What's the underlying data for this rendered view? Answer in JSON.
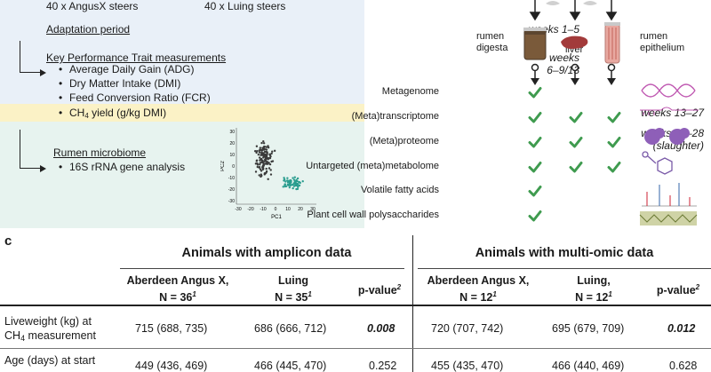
{
  "design": {
    "groups": [
      "40 x AngusX steers",
      "40 x Luing steers"
    ],
    "adaptation": {
      "label": "Adaptation period",
      "weeks": "weeks 1–5"
    },
    "kpt": {
      "label": "Key Performance Trait measurements",
      "weeks_line1": "weeks",
      "weeks_line2": "6–9/13",
      "items": [
        "Average Daily Gain (ADG)",
        "Dry Matter Intake (DMI)",
        "Feed Conversion Ratio (FCR)"
      ],
      "ch4_prefix": "CH",
      "ch4_sub": "4",
      "ch4_suffix": " yield (g/kg DMI)",
      "ch4_weeks": "weeks 13–27"
    },
    "rumen": {
      "label": "Rumen microbiome",
      "item": "16S rRNA gene analysis",
      "weeks_line1": "weeks 15–28",
      "weeks_line2": "(slaughter)"
    },
    "pca": {
      "xlabel": "PC1",
      "ylabel": "PC2",
      "xticks": [
        "-30",
        "-20",
        "-10",
        "0",
        "10",
        "20",
        "30"
      ],
      "yticks": [
        "30",
        "20",
        "10",
        "0",
        "-10",
        "-20",
        "-30"
      ],
      "colors": {
        "group_a": "#3a3a3a",
        "group_b": "#2a9d8f"
      }
    }
  },
  "omics": {
    "tissues": [
      {
        "name_line1": "rumen",
        "name_line2": "digesta"
      },
      {
        "name_line1": "liver",
        "name_line2": ""
      },
      {
        "name_line1": "rumen",
        "name_line2": "epithelium"
      }
    ],
    "rows": [
      {
        "label": "Metagenome",
        "checks": [
          true,
          false,
          false
        ]
      },
      {
        "label": "(Meta)transcriptome",
        "checks": [
          true,
          true,
          true
        ]
      },
      {
        "label": "(Meta)proteome",
        "checks": [
          true,
          true,
          true
        ]
      },
      {
        "label": "Untargeted (meta)metabolome",
        "checks": [
          true,
          true,
          true
        ]
      },
      {
        "label": "Volatile fatty acids",
        "checks": [
          true,
          false,
          false
        ]
      },
      {
        "label": "Plant cell wall polysaccharides",
        "checks": [
          true,
          false,
          false
        ]
      }
    ],
    "check_color": "#3f9b4f"
  },
  "table": {
    "panel_label": "c",
    "group1": "Animals with amplicon data",
    "group2": "Animals with multi-omic data",
    "columns": [
      {
        "line1": "Aberdeen Angus X,",
        "line2": "N = 36",
        "sup": "1"
      },
      {
        "line1": "Luing",
        "line2": "N = 35",
        "sup": "1"
      },
      {
        "line1": "p-value",
        "line2": "",
        "sup": "2"
      },
      {
        "line1": "Aberdeen Angus X,",
        "line2": "N = 12",
        "sup": "1"
      },
      {
        "line1": "Luing,",
        "line2": "N = 12",
        "sup": "1"
      },
      {
        "line1": "p-value",
        "line2": "",
        "sup": "2"
      }
    ],
    "rows": [
      {
        "label_line1": "Liveweight (kg) at",
        "label_line2_prefix": "CH",
        "label_line2_sub": "4",
        "label_line2_suffix": " measurement",
        "values": [
          "715 (688, 735)",
          "686 (666, 712)",
          "0.008",
          "720 (707, 742)",
          "695 (679, 709)",
          "0.012"
        ]
      },
      {
        "label_line1": "Age (days) at start",
        "label_line2_prefix": "",
        "label_line2_sub": "",
        "label_line2_suffix": "",
        "values": [
          "449 (436, 469)",
          "466 (445, 470)",
          "0.252",
          "455 (435, 470)",
          "466 (440, 469)",
          "0.628"
        ]
      }
    ]
  }
}
